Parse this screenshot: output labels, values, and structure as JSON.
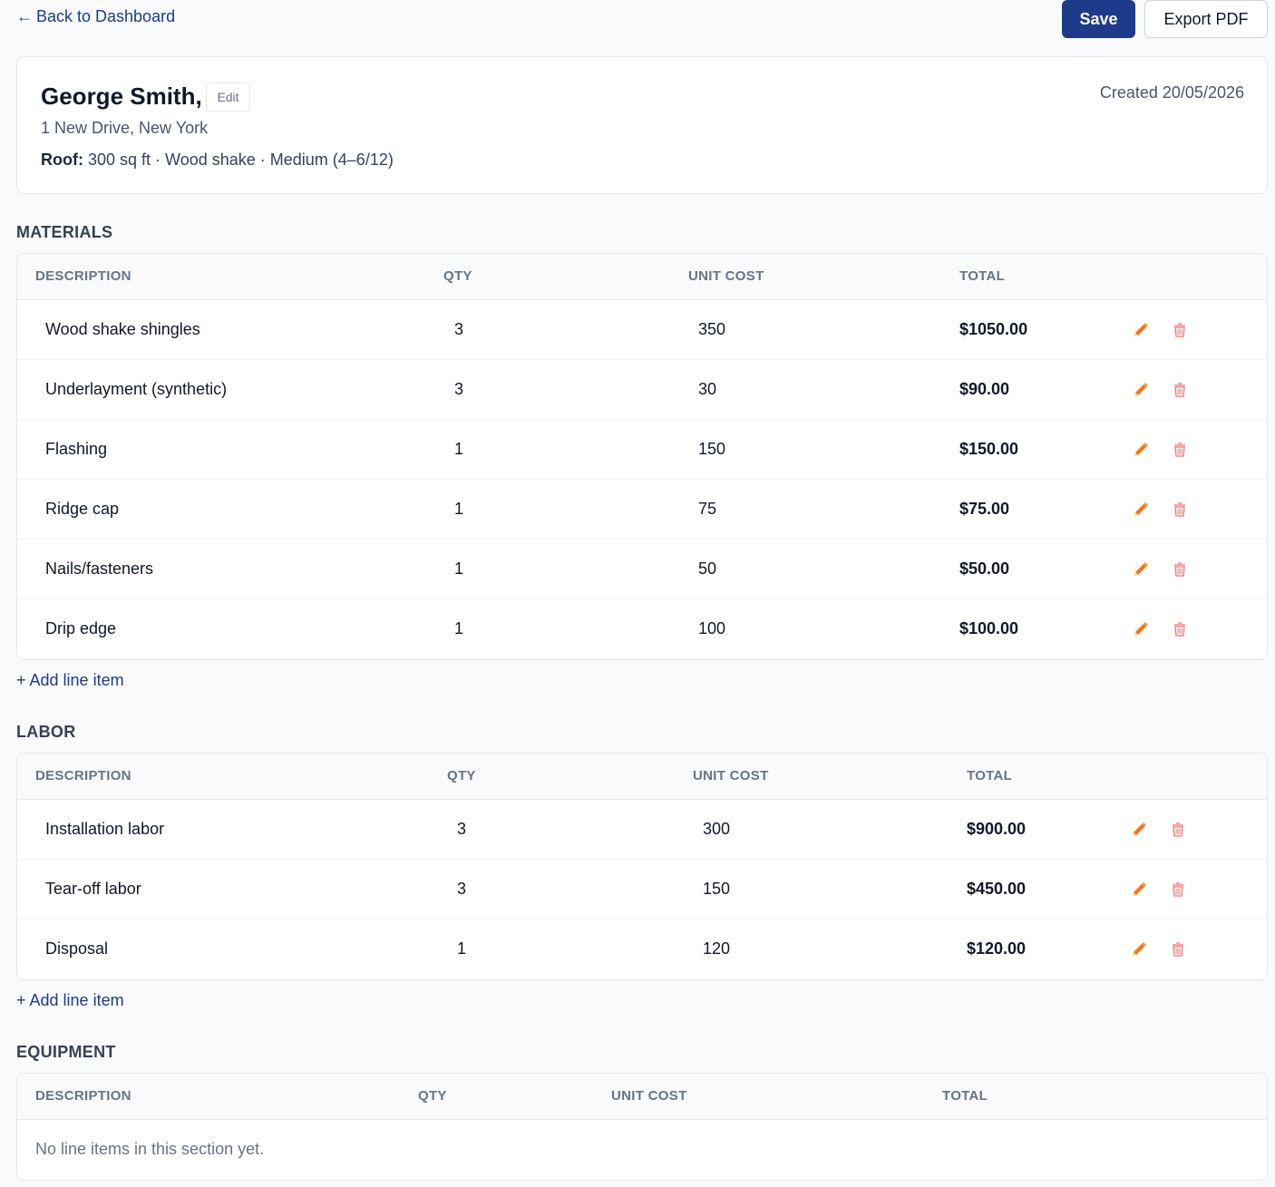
{
  "nav": {
    "back_arrow": "←",
    "back_label": "Back to Dashboard"
  },
  "toolbar": {
    "save_label": "Save",
    "export_label": "Export PDF"
  },
  "client": {
    "name": "George Smith,",
    "edit_label": "Edit",
    "created": "Created 20/05/2026",
    "address": "1 New Drive, New York",
    "roof_label": "Roof:",
    "roof_details": "300 sq ft · Wood shake · Medium (4–6/12)"
  },
  "columns": [
    "DESCRIPTION",
    "QTY",
    "UNIT COST",
    "TOTAL"
  ],
  "sections": [
    {
      "title": "MATERIALS",
      "rows": [
        {
          "description": "Wood shake shingles",
          "qty": "3",
          "unit_cost": "350",
          "total": "$1050.00"
        },
        {
          "description": "Underlayment (synthetic)",
          "qty": "3",
          "unit_cost": "30",
          "total": "$90.00"
        },
        {
          "description": "Flashing",
          "qty": "1",
          "unit_cost": "150",
          "total": "$150.00"
        },
        {
          "description": "Ridge cap",
          "qty": "1",
          "unit_cost": "75",
          "total": "$75.00"
        },
        {
          "description": "Nails/fasteners",
          "qty": "1",
          "unit_cost": "50",
          "total": "$50.00"
        },
        {
          "description": "Drip edge",
          "qty": "1",
          "unit_cost": "100",
          "total": "$100.00"
        }
      ],
      "add_label": "+ Add line item"
    },
    {
      "title": "LABOR",
      "rows": [
        {
          "description": "Installation labor",
          "qty": "3",
          "unit_cost": "300",
          "total": "$900.00"
        },
        {
          "description": "Tear-off labor",
          "qty": "3",
          "unit_cost": "150",
          "total": "$450.00"
        },
        {
          "description": "Disposal",
          "qty": "1",
          "unit_cost": "120",
          "total": "$120.00"
        }
      ],
      "add_label": "+ Add line item"
    },
    {
      "title": "EQUIPMENT",
      "rows": [],
      "empty_text": "No line items in this section yet."
    }
  ],
  "icons": {
    "edit": "pencil-icon",
    "delete": "trash-icon"
  },
  "colors": {
    "primary": "#1e3a8a",
    "edit_icon": "#f97316",
    "delete_icon": "#f87171"
  }
}
